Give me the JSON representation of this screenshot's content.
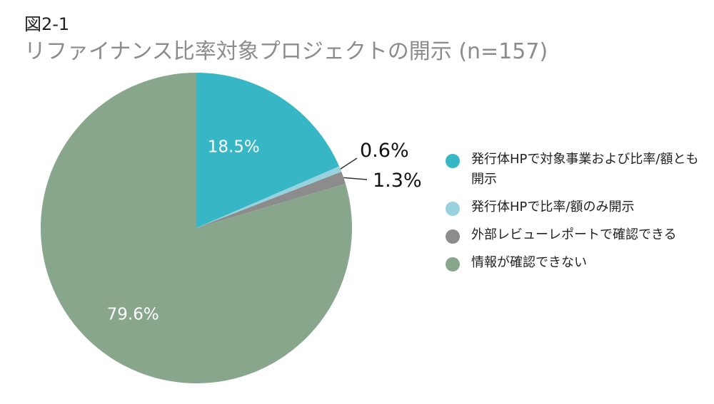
{
  "figure": {
    "label": "図2-1",
    "title": "リファイナンス比率対象プロジェクトの開示 (n=157)"
  },
  "chart_data": {
    "type": "pie",
    "start_angle_deg": 0,
    "direction": "clockwise",
    "slices": [
      {
        "name": "発行体HPで対象事業および比率/額とも開示",
        "value": 18.5,
        "label": "18.5%",
        "color": "#37b7c6",
        "label_placement": "inside"
      },
      {
        "name": "発行体HPで比率/額のみ開示",
        "value": 0.6,
        "label": "0.6%",
        "color": "#97d2de",
        "label_placement": "outside"
      },
      {
        "name": "外部レビューレポートで確認できる",
        "value": 1.3,
        "label": "1.3%",
        "color": "#8c8c8c",
        "label_placement": "outside"
      },
      {
        "name": "情報が確認できない",
        "value": 79.6,
        "label": "79.6%",
        "color": "#88a68c",
        "label_placement": "inside"
      }
    ],
    "legend_position": "right"
  }
}
